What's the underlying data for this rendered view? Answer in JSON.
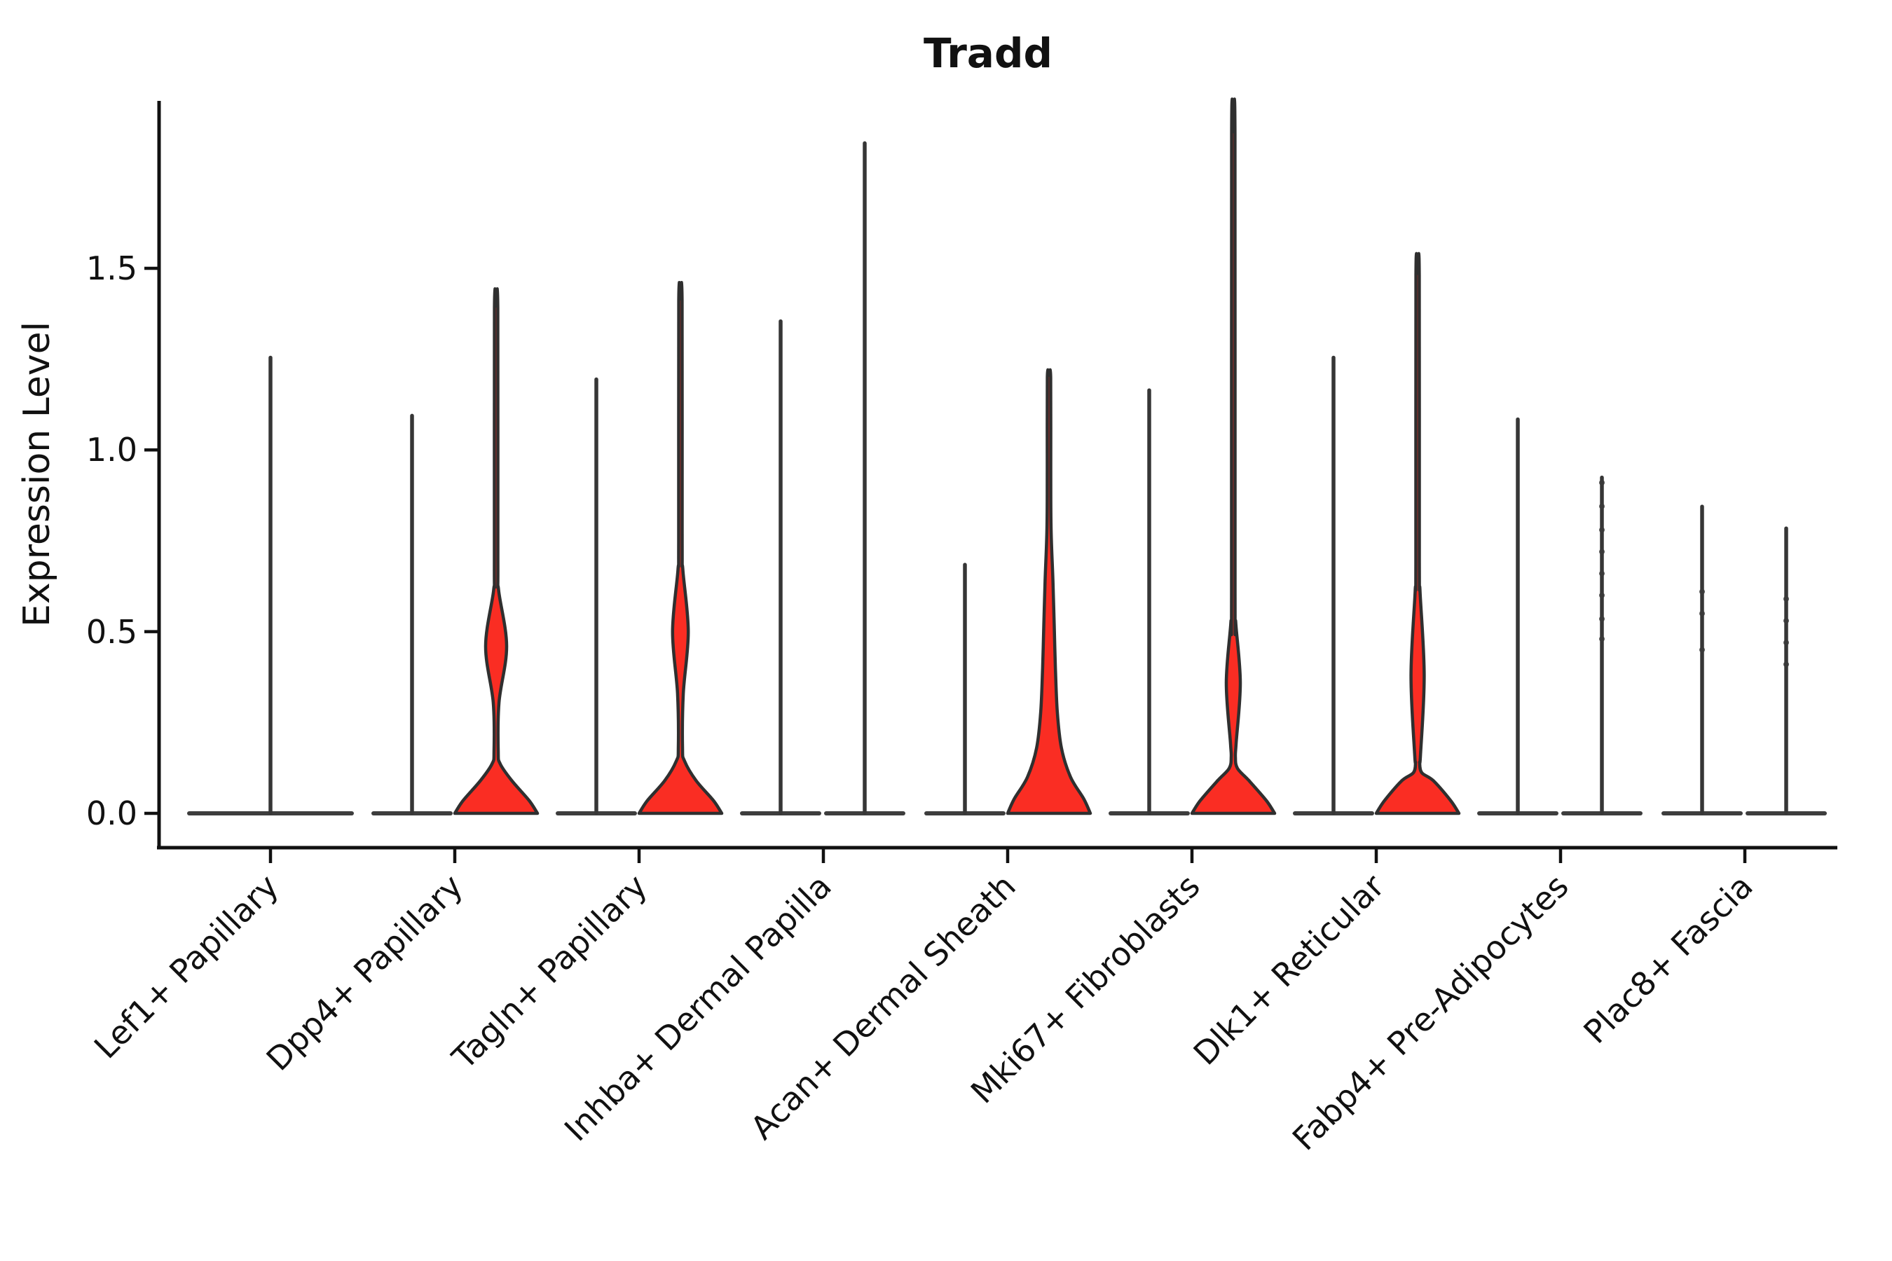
{
  "chart_data": {
    "type": "violin",
    "title": "Tradd",
    "ylabel": "Expression Level",
    "xlabel": "",
    "grid": false,
    "legend": "none",
    "ylim": [
      0,
      1.96
    ],
    "yticks": [
      0.0,
      0.5,
      1.0,
      1.5
    ],
    "ytick_labels": [
      "0.0",
      "0.5",
      "1.0",
      "1.5"
    ],
    "categories": [
      "Lef1+ Papillary",
      "Dpp4+ Papillary",
      "Tagln+ Papillary",
      "Inhba+ Dermal Papilla",
      "Acan+ Dermal Sheath",
      "Mki67+ Fibroblasts",
      "Dlk1+ Reticular",
      "Fabp4+ Pre-Adipocytes",
      "Plac8+ Fascia"
    ],
    "fill_color": "#fa2d23",
    "outline_color": "#2f2f2f",
    "groups_per_category": 2,
    "violins": [
      {
        "category": "Lef1+ Papillary",
        "slot": "center",
        "max": 1.26,
        "shape": "flat"
      },
      {
        "category": "Dpp4+ Papillary",
        "slot": "left",
        "max": 1.1,
        "shape": "flat"
      },
      {
        "category": "Dpp4+ Papillary",
        "slot": "right",
        "max": 1.39,
        "shape": "diamond",
        "bulge": {
          "center": 0.46,
          "halfwidth": 0.254,
          "bottom": 0.305,
          "top": 0.615,
          "waist": 0.17
        }
      },
      {
        "category": "Tagln+ Papillary",
        "slot": "left",
        "max": 1.2,
        "shape": "flat"
      },
      {
        "category": "Tagln+ Papillary",
        "slot": "right",
        "max": 1.41,
        "shape": "diamond",
        "bulge": {
          "center": 0.5,
          "halfwidth": 0.19,
          "bottom": 0.33,
          "top": 0.67,
          "waist": 0.18
        }
      },
      {
        "category": "Inhba+ Dermal Papilla",
        "slot": "left",
        "max": 1.36,
        "shape": "flat"
      },
      {
        "category": "Inhba+ Dermal Papilla",
        "slot": "right",
        "max": 1.85,
        "shape": "flat"
      },
      {
        "category": "Acan+ Dermal Sheath",
        "slot": "left",
        "max": 0.69,
        "shape": "flat"
      },
      {
        "category": "Acan+ Dermal Sheath",
        "slot": "right",
        "max": 1.2,
        "shape": "trumpet"
      },
      {
        "category": "Mki67+ Fibroblasts",
        "slot": "left",
        "max": 1.17,
        "shape": "flat"
      },
      {
        "category": "Mki67+ Fibroblasts",
        "slot": "right",
        "max": 1.87,
        "shape": "diamond",
        "bulge": {
          "center": 0.36,
          "halfwidth": 0.17,
          "bottom": 0.195,
          "top": 0.525,
          "waist": 0.155
        }
      },
      {
        "category": "Dlk1+ Reticular",
        "slot": "left",
        "max": 1.26,
        "shape": "flat"
      },
      {
        "category": "Dlk1+ Reticular",
        "slot": "right",
        "max": 1.48,
        "shape": "diamond",
        "bulge": {
          "center": 0.38,
          "halfwidth": 0.16,
          "bottom": 0.16,
          "top": 0.61,
          "waist": 0.14
        }
      },
      {
        "category": "Fabp4+ Pre-Adipocytes",
        "slot": "left",
        "max": 1.09,
        "shape": "flat"
      },
      {
        "category": "Fabp4+ Pre-Adipocytes",
        "slot": "right",
        "max": 0.93,
        "shape": "flat",
        "points": [
          0.91,
          0.845,
          0.78,
          0.72,
          0.66,
          0.6,
          0.535,
          0.48
        ]
      },
      {
        "category": "Plac8+ Fascia",
        "slot": "left",
        "max": 0.85,
        "shape": "flat",
        "points": [
          0.61,
          0.55,
          0.45
        ]
      },
      {
        "category": "Plac8+ Fascia",
        "slot": "right",
        "max": 0.79,
        "shape": "flat",
        "points": [
          0.59,
          0.53,
          0.47,
          0.41
        ]
      }
    ]
  }
}
